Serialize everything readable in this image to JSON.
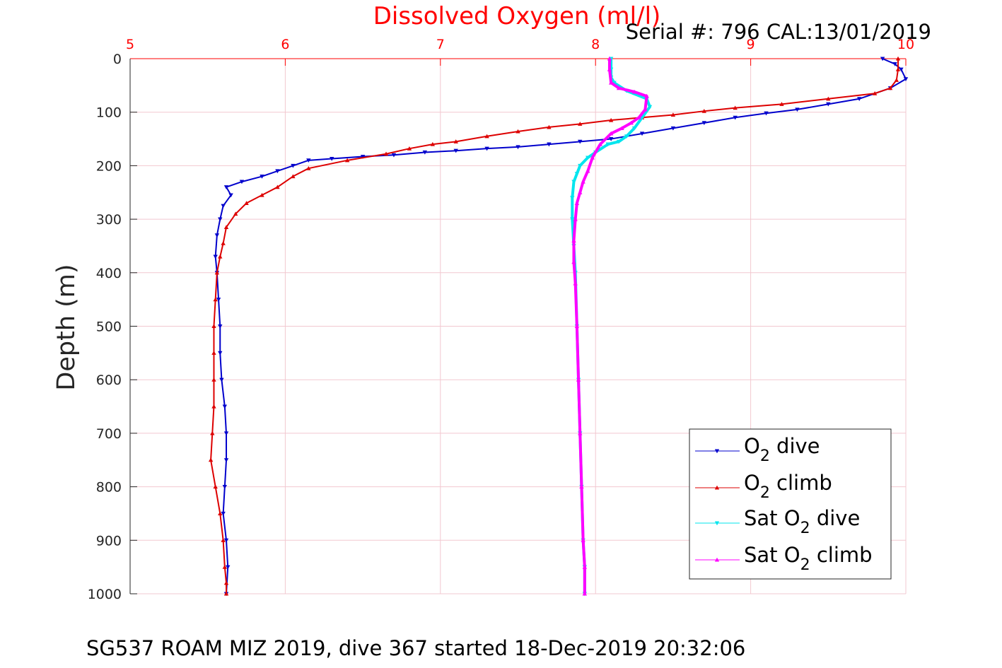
{
  "chart_data": {
    "type": "scatter",
    "title": "Dissolved Oxygen (ml/l)",
    "serial_text": "Serial #: 796  CAL:13/01/2019",
    "caption": "SG537 ROAM MIZ 2019, dive 367 started 18-Dec-2019 20:32:06",
    "ylabel": "Depth (m)",
    "xlabel": "",
    "xlim": [
      5,
      10
    ],
    "ylim": [
      0,
      1000
    ],
    "y_reversed": true,
    "x_axis_position": "top",
    "x_ticks": [
      "5",
      "6",
      "7",
      "8",
      "9",
      "10"
    ],
    "y_ticks": [
      "0",
      "100",
      "200",
      "300",
      "400",
      "500",
      "600",
      "700",
      "800",
      "900",
      "1000"
    ],
    "grid": true,
    "legend_position": "bottom-right",
    "colors": {
      "title": "#ff0000",
      "top_axis": "#ff0000",
      "grid": "#f2c8d0",
      "axis": "#262626"
    },
    "series": [
      {
        "name": "O2 dive",
        "legend_main": "O",
        "legend_sub": "2",
        "legend_rest": " dive",
        "color": "#0000cc",
        "marker": "triangle-down",
        "x": [
          9.85,
          9.93,
          9.97,
          10.0,
          9.9,
          9.7,
          9.5,
          9.3,
          9.1,
          8.9,
          8.7,
          8.5,
          8.3,
          8.1,
          7.9,
          7.7,
          7.5,
          7.3,
          7.1,
          6.9,
          6.7,
          6.5,
          6.3,
          6.15,
          6.05,
          5.95,
          5.85,
          5.72,
          5.62,
          5.65,
          5.6,
          5.58,
          5.56,
          5.55,
          5.56,
          5.57,
          5.58,
          5.58,
          5.59,
          5.61,
          5.62,
          5.62,
          5.61,
          5.6,
          5.62,
          5.63,
          5.62
        ],
        "y": [
          0,
          10,
          20,
          38,
          55,
          75,
          85,
          95,
          102,
          110,
          120,
          130,
          140,
          150,
          155,
          160,
          165,
          168,
          172,
          175,
          180,
          183,
          187,
          190,
          200,
          210,
          220,
          230,
          240,
          255,
          275,
          300,
          330,
          370,
          400,
          450,
          500,
          550,
          600,
          650,
          700,
          750,
          800,
          850,
          900,
          950,
          1000
        ]
      },
      {
        "name": "O2 climb",
        "legend_main": "O",
        "legend_sub": "2",
        "legend_rest": " climb",
        "color": "#dd0000",
        "marker": "triangle-up",
        "x": [
          9.95,
          9.95,
          9.94,
          9.9,
          9.8,
          9.5,
          9.2,
          8.9,
          8.7,
          8.5,
          8.3,
          8.1,
          7.9,
          7.7,
          7.5,
          7.3,
          7.1,
          6.95,
          6.8,
          6.65,
          6.4,
          6.15,
          6.05,
          5.95,
          5.85,
          5.75,
          5.68,
          5.62,
          5.6,
          5.58,
          5.56,
          5.55,
          5.54,
          5.54,
          5.54,
          5.54,
          5.53,
          5.52,
          5.55,
          5.58,
          5.6,
          5.61,
          5.62,
          5.62
        ],
        "y": [
          0,
          20,
          40,
          55,
          65,
          75,
          85,
          92,
          98,
          105,
          110,
          115,
          122,
          128,
          136,
          145,
          155,
          160,
          168,
          178,
          190,
          205,
          220,
          240,
          255,
          270,
          290,
          315,
          345,
          370,
          400,
          450,
          500,
          550,
          600,
          650,
          700,
          750,
          800,
          850,
          900,
          950,
          980,
          1000
        ]
      },
      {
        "name": "Sat O2 dive",
        "legend_main": "Sat O",
        "legend_sub": "2",
        "legend_rest": " dive",
        "color": "#00e5ee",
        "marker": "triangle-down",
        "x": [
          8.1,
          8.1,
          8.1,
          8.12,
          8.2,
          8.33,
          8.35,
          8.3,
          8.25,
          8.2,
          8.15,
          8.08,
          8.0,
          7.95,
          7.9,
          7.88,
          7.86,
          7.85,
          7.85,
          7.86,
          7.87,
          7.88,
          7.89,
          7.9,
          7.91,
          7.92,
          7.93,
          7.93
        ],
        "y": [
          0,
          20,
          35,
          45,
          60,
          75,
          90,
          110,
          130,
          145,
          155,
          160,
          175,
          185,
          200,
          215,
          230,
          260,
          300,
          350,
          400,
          500,
          600,
          700,
          800,
          900,
          950,
          1000
        ]
      },
      {
        "name": "Sat O2 climb",
        "legend_main": "Sat O",
        "legend_sub": "2",
        "legend_rest": " climb",
        "color": "#ff00ff",
        "marker": "triangle-up",
        "x": [
          8.09,
          8.09,
          8.1,
          8.15,
          8.25,
          8.33,
          8.32,
          8.28,
          8.23,
          8.17,
          8.1,
          8.03,
          7.98,
          7.95,
          7.92,
          7.9,
          7.88,
          7.87,
          7.86,
          7.86,
          7.87,
          7.88,
          7.89,
          7.9,
          7.91,
          7.92,
          7.93,
          7.93
        ],
        "y": [
          0,
          20,
          45,
          55,
          62,
          70,
          95,
          110,
          120,
          130,
          140,
          160,
          185,
          210,
          230,
          250,
          270,
          300,
          340,
          380,
          420,
          500,
          600,
          700,
          800,
          900,
          950,
          1000
        ]
      }
    ]
  }
}
